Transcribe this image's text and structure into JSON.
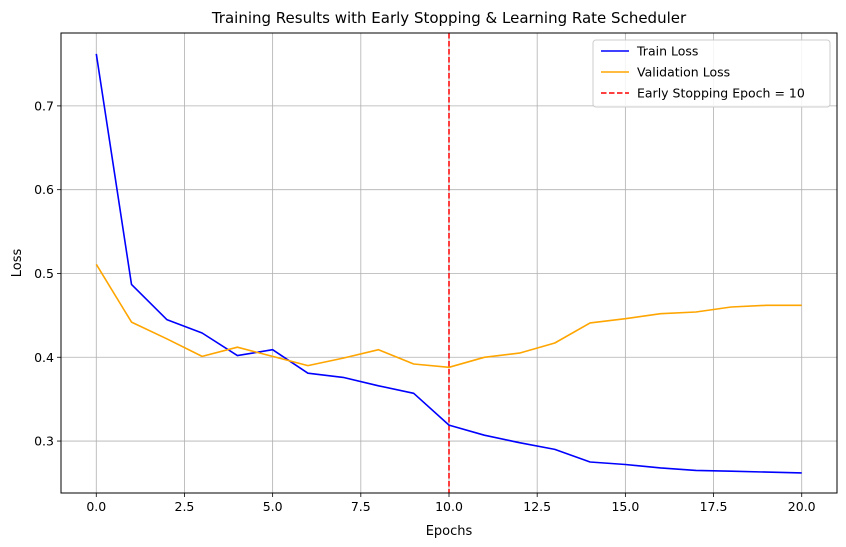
{
  "chart_data": {
    "type": "line",
    "title": "Training Results with Early Stopping & Learning Rate Scheduler",
    "xlabel": "Epochs",
    "ylabel": "Loss",
    "xlim": [
      -1,
      21
    ],
    "ylim": [
      0.238,
      0.787
    ],
    "grid": true,
    "legend_position": "top-right",
    "x_ticks": [
      0.0,
      2.5,
      5.0,
      7.5,
      10.0,
      12.5,
      15.0,
      17.5,
      20.0
    ],
    "x_tick_labels": [
      "0.0",
      "2.5",
      "5.0",
      "7.5",
      "10.0",
      "12.5",
      "15.0",
      "17.5",
      "20.0"
    ],
    "y_ticks": [
      0.3,
      0.4,
      0.5,
      0.6,
      0.7
    ],
    "y_tick_labels": [
      "0.3",
      "0.4",
      "0.5",
      "0.6",
      "0.7"
    ],
    "x": [
      0,
      1,
      2,
      3,
      4,
      5,
      6,
      7,
      8,
      9,
      10,
      11,
      12,
      13,
      14,
      15,
      16,
      17,
      18,
      19,
      20
    ],
    "series": [
      {
        "name": "Train Loss",
        "color": "#0000ff",
        "values": [
          0.762,
          0.487,
          0.445,
          0.429,
          0.402,
          0.409,
          0.381,
          0.376,
          0.366,
          0.357,
          0.319,
          0.307,
          0.298,
          0.29,
          0.275,
          0.272,
          0.268,
          0.265,
          0.264,
          0.263,
          0.262
        ]
      },
      {
        "name": "Validation Loss",
        "color": "#ffa500",
        "values": [
          0.511,
          0.442,
          0.422,
          0.401,
          0.412,
          0.401,
          0.39,
          0.399,
          0.409,
          0.392,
          0.388,
          0.4,
          0.405,
          0.417,
          0.441,
          0.446,
          0.452,
          0.454,
          0.46,
          0.462,
          0.462
        ]
      }
    ],
    "vline": {
      "x": 10,
      "label": "Early Stopping Epoch = 10",
      "color": "#ff0000",
      "style": "dashed"
    }
  }
}
